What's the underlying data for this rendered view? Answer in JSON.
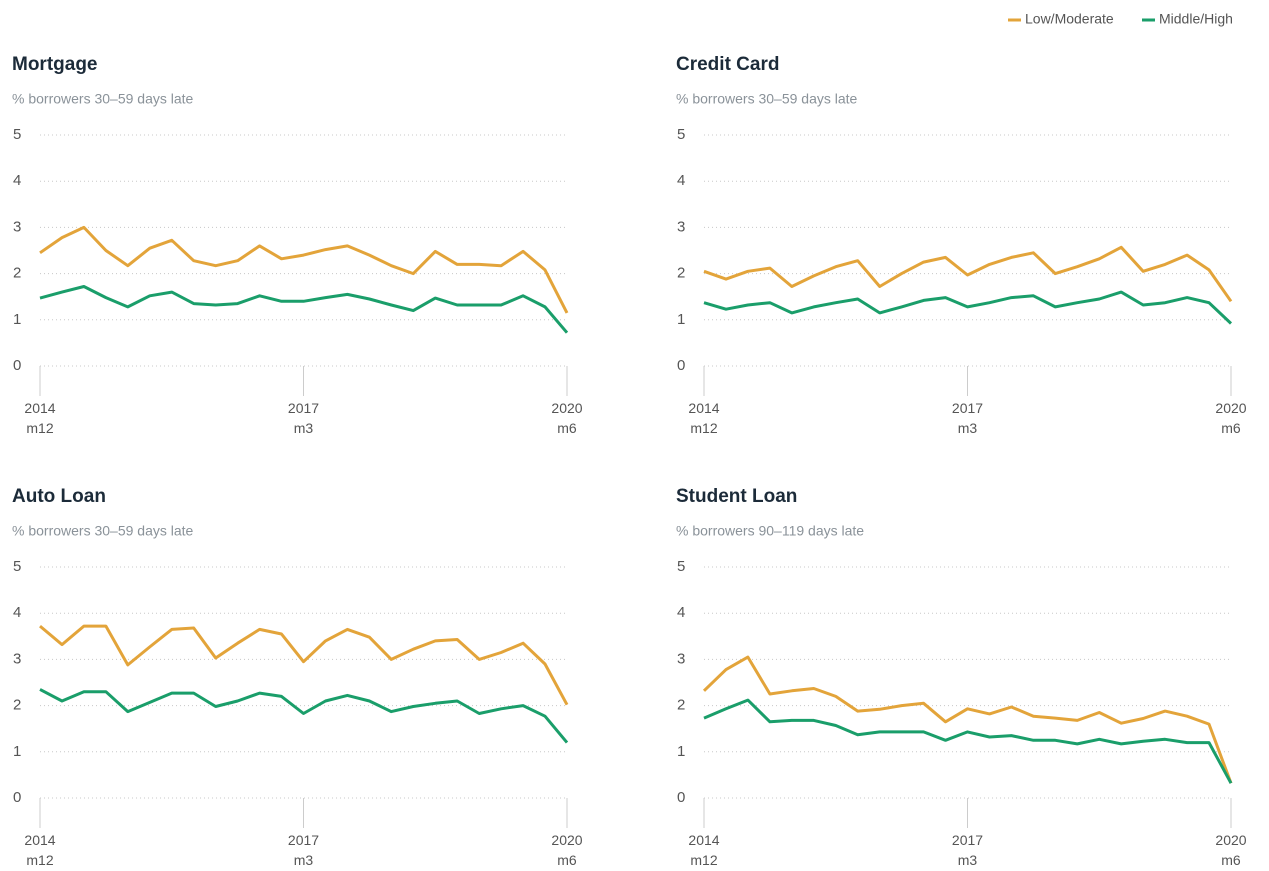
{
  "chart_data": [
    {
      "type": "line",
      "title": "Mortgage",
      "subtitle": "% borrowers 30–59 days late",
      "categories": [
        "2014 m12",
        null,
        null,
        null,
        null,
        null,
        null,
        null,
        null,
        null,
        null,
        null,
        "2017 m3",
        null,
        null,
        null,
        null,
        null,
        null,
        null,
        null,
        null,
        null,
        null,
        "2020 m6"
      ],
      "ylim": [
        0,
        5
      ],
      "yticks": [
        0,
        1,
        2,
        3,
        4,
        5
      ],
      "grid": true,
      "legend": "top-right",
      "series": [
        {
          "name": "Low/Moderate",
          "color": "#e3a43a",
          "values": [
            2.45,
            2.78,
            3.0,
            2.5,
            2.17,
            2.55,
            2.72,
            2.28,
            2.17,
            2.28,
            2.6,
            2.32,
            2.4,
            2.52,
            2.6,
            2.4,
            2.17,
            2.0,
            2.48,
            2.2,
            2.2,
            2.17,
            2.48,
            2.08,
            1.15
          ]
        },
        {
          "name": "Middle/High",
          "color": "#1a9e6a",
          "values": [
            1.47,
            1.6,
            1.72,
            1.48,
            1.28,
            1.52,
            1.6,
            1.35,
            1.32,
            1.35,
            1.52,
            1.4,
            1.4,
            1.48,
            1.55,
            1.45,
            1.32,
            1.2,
            1.47,
            1.32,
            1.32,
            1.32,
            1.52,
            1.28,
            0.72
          ]
        }
      ]
    },
    {
      "type": "line",
      "title": "Credit Card",
      "subtitle": "% borrowers 30–59 days late",
      "categories": [
        "2014 m12",
        null,
        null,
        null,
        null,
        null,
        null,
        null,
        null,
        null,
        null,
        null,
        "2017 m3",
        null,
        null,
        null,
        null,
        null,
        null,
        null,
        null,
        null,
        null,
        null,
        "2020 m6"
      ],
      "ylim": [
        0,
        5
      ],
      "yticks": [
        0,
        1,
        2,
        3,
        4,
        5
      ],
      "grid": true,
      "series": [
        {
          "color": "#e3a43a",
          "values": [
            2.05,
            1.88,
            2.05,
            2.12,
            1.72,
            1.95,
            2.15,
            2.28,
            1.72,
            2.0,
            2.25,
            2.35,
            1.97,
            2.2,
            2.35,
            2.45,
            2.0,
            2.15,
            2.32,
            2.57,
            2.05,
            2.2,
            2.4,
            2.08,
            1.4
          ]
        },
        {
          "color": "#1a9e6a",
          "values": [
            1.37,
            1.23,
            1.32,
            1.37,
            1.15,
            1.28,
            1.37,
            1.45,
            1.15,
            1.28,
            1.42,
            1.48,
            1.28,
            1.37,
            1.48,
            1.52,
            1.28,
            1.37,
            1.45,
            1.6,
            1.32,
            1.37,
            1.48,
            1.37,
            0.92
          ]
        }
      ]
    },
    {
      "type": "line",
      "title": "Auto Loan",
      "subtitle": "% borrowers 30–59 days late",
      "categories": [
        "2014 m12",
        null,
        null,
        null,
        null,
        null,
        null,
        null,
        null,
        null,
        null,
        null,
        "2017 m3",
        null,
        null,
        null,
        null,
        null,
        null,
        null,
        null,
        null,
        null,
        null,
        "2020 m6"
      ],
      "ylim": [
        0,
        5
      ],
      "yticks": [
        0,
        1,
        2,
        3,
        4,
        5
      ],
      "grid": true,
      "series": [
        {
          "color": "#e3a43a",
          "values": [
            3.72,
            3.32,
            3.72,
            3.72,
            2.88,
            3.27,
            3.65,
            3.68,
            3.03,
            3.35,
            3.65,
            3.55,
            2.95,
            3.4,
            3.65,
            3.48,
            3.0,
            3.22,
            3.4,
            3.43,
            3.0,
            3.15,
            3.35,
            2.9,
            2.02
          ]
        },
        {
          "color": "#1a9e6a",
          "values": [
            2.35,
            2.1,
            2.3,
            2.3,
            1.87,
            2.07,
            2.27,
            2.27,
            1.98,
            2.1,
            2.27,
            2.2,
            1.83,
            2.1,
            2.22,
            2.1,
            1.87,
            1.98,
            2.05,
            2.1,
            1.83,
            1.93,
            2.0,
            1.77,
            1.2
          ]
        }
      ]
    },
    {
      "type": "line",
      "title": "Student Loan",
      "subtitle": "% borrowers 90–119 days late",
      "categories": [
        "2014 m12",
        null,
        null,
        null,
        null,
        null,
        null,
        null,
        null,
        null,
        null,
        null,
        "2017 m3",
        null,
        null,
        null,
        null,
        null,
        null,
        null,
        null,
        null,
        null,
        null,
        "2020 m6"
      ],
      "ylim": [
        0,
        5
      ],
      "yticks": [
        0,
        1,
        2,
        3,
        4,
        5
      ],
      "grid": true,
      "series": [
        {
          "color": "#e3a43a",
          "values": [
            2.32,
            2.78,
            3.05,
            2.25,
            2.32,
            2.37,
            2.2,
            1.88,
            1.92,
            2.0,
            2.05,
            1.65,
            1.93,
            1.82,
            1.97,
            1.77,
            1.73,
            1.68,
            1.85,
            1.62,
            1.72,
            1.88,
            1.77,
            1.6,
            0.32
          ]
        },
        {
          "color": "#1a9e6a",
          "values": [
            1.73,
            1.93,
            2.12,
            1.65,
            1.68,
            1.68,
            1.57,
            1.37,
            1.43,
            1.43,
            1.43,
            1.25,
            1.43,
            1.32,
            1.35,
            1.25,
            1.25,
            1.17,
            1.27,
            1.17,
            1.23,
            1.27,
            1.2,
            1.2,
            0.32
          ]
        }
      ]
    }
  ]
}
